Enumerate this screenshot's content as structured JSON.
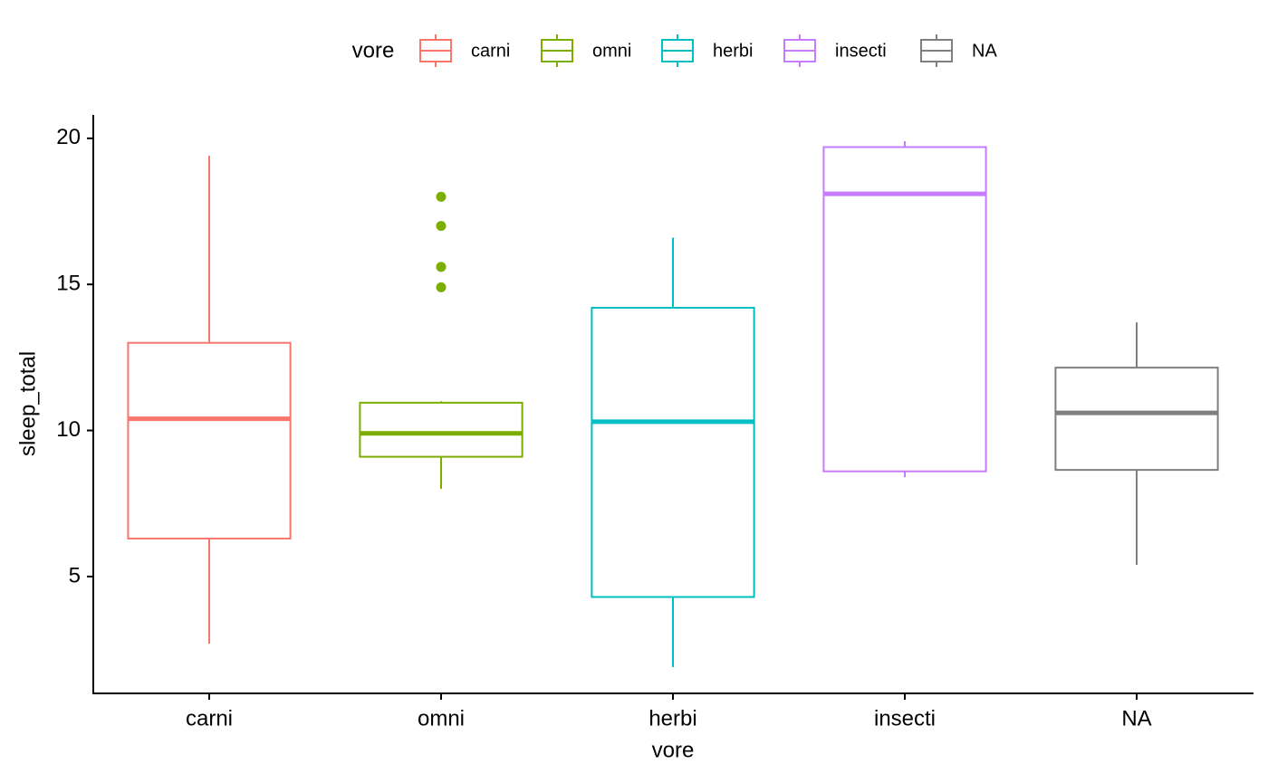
{
  "chart_data": {
    "type": "box",
    "x_label": "vore",
    "y_label": "sleep_total",
    "legend_title": "vore",
    "legend_position": "top",
    "categories": [
      "carni",
      "omni",
      "herbi",
      "insecti",
      "NA"
    ],
    "series": [
      {
        "name": "carni",
        "color": "#f8766d",
        "min": 2.7,
        "q1": 6.3,
        "median": 10.4,
        "q3": 13.0,
        "max": 19.4,
        "outliers": []
      },
      {
        "name": "omni",
        "color": "#7cae00",
        "min": 8.0,
        "q1": 9.1,
        "median": 9.9,
        "q3": 10.95,
        "max": 11.0,
        "outliers": [
          18.0,
          17.0,
          15.6,
          14.9
        ]
      },
      {
        "name": "herbi",
        "color": "#00bfc4",
        "min": 1.9,
        "q1": 4.3,
        "median": 10.3,
        "q3": 14.2,
        "max": 16.6,
        "outliers": []
      },
      {
        "name": "insecti",
        "color": "#c77cff",
        "min": 8.4,
        "q1": 8.6,
        "median": 18.1,
        "q3": 19.7,
        "max": 19.9,
        "outliers": []
      },
      {
        "name": "NA",
        "color": "#7f7f7f",
        "min": 5.4,
        "q1": 8.65,
        "median": 10.6,
        "q3": 12.15,
        "max": 13.7,
        "outliers": []
      }
    ],
    "ylim": [
      1.0,
      20.8
    ],
    "yticks": [
      5,
      10,
      15,
      20
    ]
  }
}
